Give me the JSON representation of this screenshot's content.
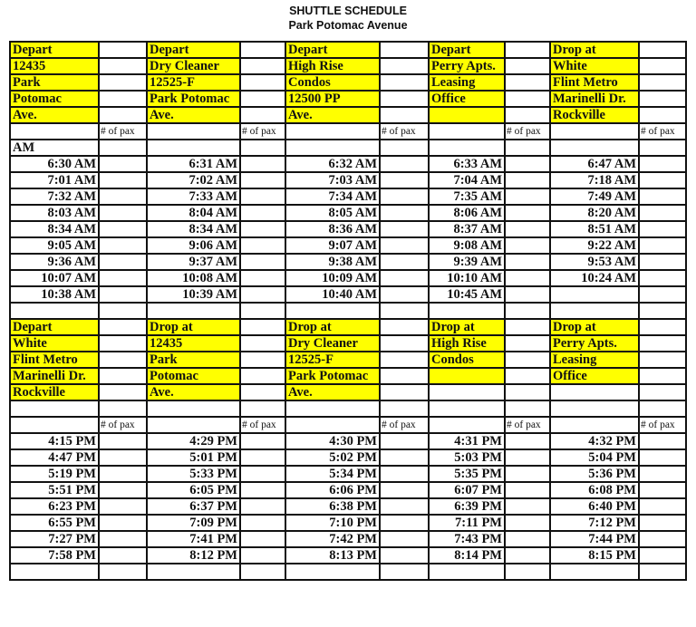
{
  "document": {
    "title": "SHUTTLE SCHEDULE",
    "subtitle": "Park Potomac Avenue",
    "highlight_color": "#ffff00",
    "pax_label": "# of pax",
    "am_label": "AM",
    "am_headers": [
      [
        "Depart",
        "12435",
        "Park",
        "Potomac",
        "Ave."
      ],
      [
        "Depart",
        "Dry Cleaner",
        "12525-F",
        "Park Potomac",
        "Ave."
      ],
      [
        "Depart",
        "High Rise",
        "Condos",
        "12500 PP",
        "Ave."
      ],
      [
        "Depart",
        "Perry Apts.",
        "Leasing",
        " Office",
        ""
      ],
      [
        "Drop at",
        "White",
        "Flint Metro",
        "Marinelli Dr.",
        "Rockville"
      ]
    ],
    "am_times": [
      [
        "6:30 AM",
        "6:31 AM",
        "6:32 AM",
        "6:33 AM",
        "6:47 AM"
      ],
      [
        "7:01 AM",
        "7:02 AM",
        "7:03 AM",
        "7:04 AM",
        "7:18 AM"
      ],
      [
        "7:32 AM",
        "7:33 AM",
        "7:34 AM",
        "7:35 AM",
        "7:49 AM"
      ],
      [
        "8:03 AM",
        "8:04 AM",
        "8:05 AM",
        "8:06 AM",
        "8:20 AM"
      ],
      [
        "8:34 AM",
        "8:34 AM",
        "8:36 AM",
        "8:37 AM",
        "8:51 AM"
      ],
      [
        "9:05 AM",
        "9:06 AM",
        "9:07 AM",
        "9:08 AM",
        "9:22 AM"
      ],
      [
        "9:36 AM",
        "9:37 AM",
        "9:38 AM",
        "9:39 AM",
        "9:53 AM"
      ],
      [
        "10:07 AM",
        "10:08 AM",
        "10:09 AM",
        "10:10 AM",
        "10:24 AM"
      ],
      [
        "10:38 AM",
        "10:39 AM",
        "10:40 AM",
        "10:45 AM",
        ""
      ]
    ],
    "pm_headers": [
      [
        "Depart",
        "White",
        "Flint Metro",
        "Marinelli Dr.",
        "Rockville"
      ],
      [
        "Drop at",
        "12435",
        "Park",
        "Potomac",
        "Ave."
      ],
      [
        "Drop at",
        "Dry Cleaner",
        "12525-F",
        "Park Potomac",
        "Ave."
      ],
      [
        "Drop at",
        "High Rise",
        "Condos",
        "",
        null
      ],
      [
        "Drop at",
        "Perry Apts.",
        "Leasing",
        "Office",
        null
      ]
    ],
    "pm_times": [
      [
        "4:15 PM",
        "4:29 PM",
        "4:30 PM",
        "4:31 PM",
        "4:32 PM"
      ],
      [
        "4:47 PM",
        "5:01 PM",
        "5:02 PM",
        "5:03 PM",
        "5:04 PM"
      ],
      [
        "5:19 PM",
        "5:33 PM",
        "5:34 PM",
        "5:35 PM",
        "5:36 PM"
      ],
      [
        "5:51 PM",
        "6:05 PM",
        "6:06 PM",
        "6:07 PM",
        "6:08 PM"
      ],
      [
        "6:23 PM",
        "6:37 PM",
        "6:38 PM",
        "6:39 PM",
        "6:40 PM"
      ],
      [
        "6:55 PM",
        "7:09 PM",
        "7:10 PM",
        "7:11 PM",
        "7:12 PM"
      ],
      [
        "7:27 PM",
        "7:41 PM",
        "7:42 PM",
        "7:43 PM",
        "7:44 PM"
      ],
      [
        "7:58 PM",
        "8:12 PM",
        "8:13 PM",
        "8:14 PM",
        "8:15 PM"
      ]
    ]
  }
}
